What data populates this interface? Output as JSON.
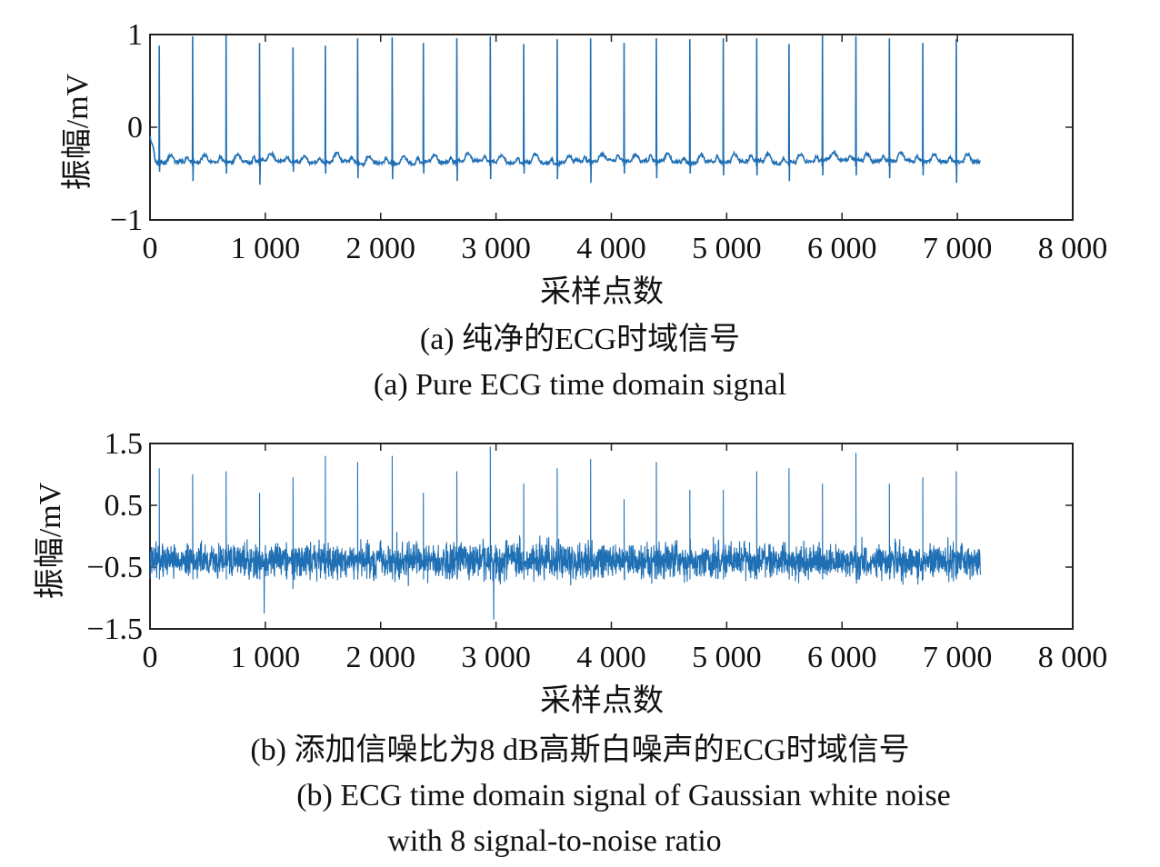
{
  "chart_data": [
    {
      "type": "line",
      "color": "#1f6fb4",
      "xlabel": "采样点数",
      "ylabel": "振幅/mV",
      "xlim": [
        0,
        8000
      ],
      "ylim": [
        -1,
        1
      ],
      "x_ticks": [
        "0",
        "1 000",
        "2 000",
        "3 000",
        "4 000",
        "5 000",
        "6 000",
        "7 000",
        "8 000"
      ],
      "y_ticks": [
        "1",
        "0",
        "−1"
      ],
      "caption_cn": "(a) 纯净的ECG时域信号",
      "caption_en": "(a) Pure ECG time domain signal",
      "series": [
        {
          "signal_end": 7200,
          "baseline": -0.37,
          "r_peak_x": [
            80,
            370,
            660,
            950,
            1240,
            1520,
            1800,
            2100,
            2370,
            2660,
            2950,
            3240,
            3530,
            3820,
            4110,
            4390,
            4680,
            4970,
            5260,
            5540,
            5830,
            6120,
            6410,
            6700,
            6990
          ],
          "r_peak_y": [
            0.88,
            0.98,
            0.99,
            0.91,
            0.86,
            0.88,
            0.96,
            0.97,
            0.91,
            0.96,
            0.98,
            0.9,
            0.95,
            0.96,
            0.91,
            0.96,
            0.95,
            0.96,
            0.96,
            0.9,
            0.99,
            0.98,
            0.96,
            0.91,
            0.95
          ],
          "s_trough_y": [
            -0.48,
            -0.58,
            -0.5,
            -0.62,
            -0.48,
            -0.5,
            -0.55,
            -0.56,
            -0.5,
            -0.58,
            -0.56,
            -0.5,
            -0.56,
            -0.6,
            -0.5,
            -0.55,
            -0.5,
            -0.52,
            -0.52,
            -0.58,
            -0.52,
            -0.52,
            -0.55,
            -0.52,
            -0.6
          ]
        }
      ]
    },
    {
      "type": "line",
      "color": "#1f6fb4",
      "xlabel": "采样点数",
      "ylabel": "振幅/mV",
      "xlim": [
        0,
        8000
      ],
      "ylim": [
        -1.5,
        1.5
      ],
      "x_ticks": [
        "0",
        "1 000",
        "2 000",
        "3 000",
        "4 000",
        "5 000",
        "6 000",
        "7 000",
        "8 000"
      ],
      "y_ticks": [
        "1.5",
        "0.5",
        "−0.5",
        "−1.5"
      ],
      "caption_cn": "(b) 添加信噪比为8 dB高斯白噪声的ECG时域信号",
      "caption_en_line1": "(b) ECG time domain signal of Gaussian white noise",
      "caption_en_line2": "with 8 signal-to-noise ratio",
      "series": [
        {
          "signal_end": 7200,
          "baseline": -0.4,
          "noise_band": [
            -0.9,
            0.2
          ],
          "r_peak_x": [
            80,
            370,
            660,
            950,
            1240,
            1520,
            1800,
            2100,
            2370,
            2660,
            2950,
            3240,
            3530,
            3820,
            4110,
            4390,
            4680,
            4970,
            5260,
            5540,
            5830,
            6120,
            6410,
            6700,
            6990
          ],
          "r_peak_y": [
            1.1,
            1.0,
            1.05,
            0.7,
            0.95,
            1.3,
            1.2,
            1.3,
            0.7,
            1.05,
            1.45,
            0.85,
            1.1,
            1.25,
            0.6,
            1.2,
            0.75,
            0.75,
            1.05,
            1.1,
            0.85,
            1.35,
            0.85,
            0.95,
            1.05
          ],
          "min_dips": [
            [
              990,
              -1.25
            ],
            [
              2980,
              -1.35
            ]
          ]
        }
      ]
    }
  ]
}
